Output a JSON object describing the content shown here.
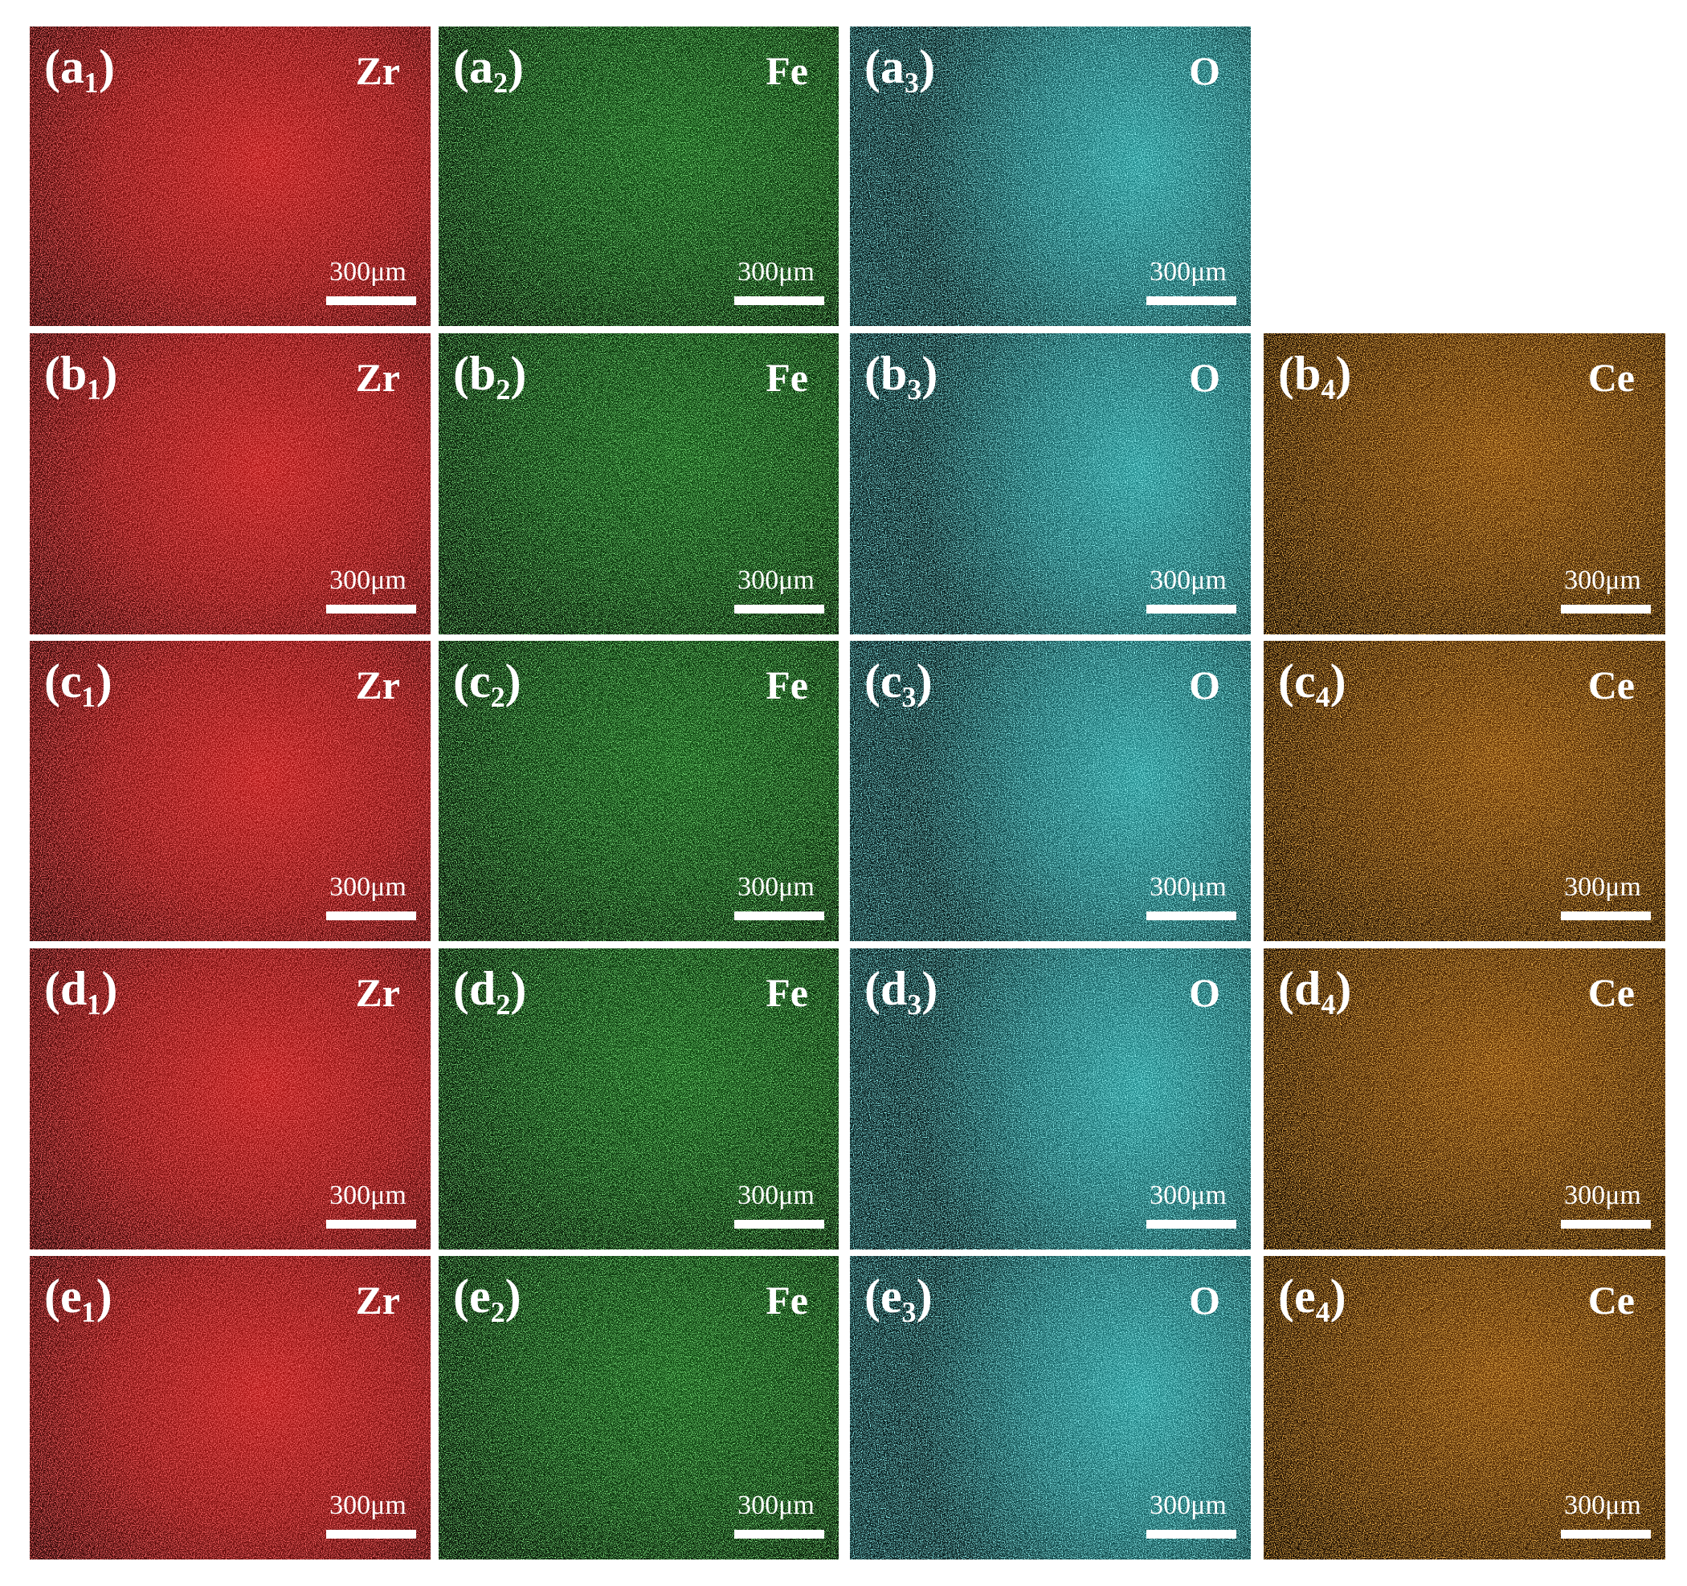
{
  "rows": [
    {
      "panels": [
        {
          "label": "(a₁)",
          "element": "Zr",
          "scale_bar": "300μm"
        },
        {
          "label": "(a₂)",
          "element": "Fe",
          "scale_bar": "300μm"
        },
        {
          "label": "(a₃)",
          "element": "O",
          "scale_bar": "300μm"
        }
      ]
    },
    {
      "panels": [
        {
          "label": "(b₁)",
          "element": "Zr",
          "scale_bar": "300μm"
        },
        {
          "label": "(b₂)",
          "element": "Fe",
          "scale_bar": "300μm"
        },
        {
          "label": "(b₃)",
          "element": "O",
          "scale_bar": "300μm"
        },
        {
          "label": "(b₄)",
          "element": "Ce",
          "scale_bar": "300μm"
        }
      ]
    },
    {
      "panels": [
        {
          "label": "(c₁)",
          "element": "Zr",
          "scale_bar": "300μm"
        },
        {
          "label": "(c₂)",
          "element": "Fe",
          "scale_bar": "300μm"
        },
        {
          "label": "(c₃)",
          "element": "O",
          "scale_bar": "300μm"
        },
        {
          "label": "(c₄)",
          "element": "Ce",
          "scale_bar": "300μm"
        }
      ]
    },
    {
      "panels": [
        {
          "label": "(d₁)",
          "element": "Zr",
          "scale_bar": "300μm"
        },
        {
          "label": "(d₂)",
          "element": "Fe",
          "scale_bar": "300μm"
        },
        {
          "label": "(d₃)",
          "element": "O",
          "scale_bar": "300μm"
        },
        {
          "label": "(d₄)",
          "element": "Ce",
          "scale_bar": "300μm"
        }
      ]
    },
    {
      "panels": [
        {
          "label": "(e₁)",
          "element": "Zr",
          "scale_bar": "300μm"
        },
        {
          "label": "(e₂)",
          "element": "Fe",
          "scale_bar": "300μm"
        },
        {
          "label": "(e₃)",
          "element": "O",
          "scale_bar": "300μm"
        },
        {
          "label": "(e₄)",
          "element": "Ce",
          "scale_bar": "300μm"
        }
      ]
    }
  ]
}
